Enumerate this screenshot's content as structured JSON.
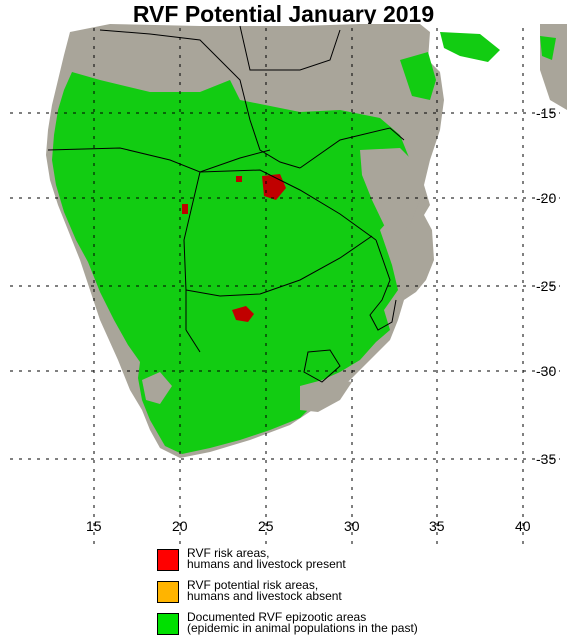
{
  "title": "RVF Potential January 2019",
  "latitude_labels": [
    "-15",
    "-20",
    "-25",
    "-30",
    "-35"
  ],
  "longitude_labels": [
    "15",
    "20",
    "25",
    "30",
    "35",
    "40"
  ],
  "colors": {
    "land": "#a9a59a",
    "epizootic": "#10d010",
    "risk_present": "#cc0000",
    "risk_absent": "#ffb400",
    "ocean": "#ffffff"
  },
  "legend": [
    {
      "line1": "RVF risk areas,",
      "line2": "humans and livestock present",
      "color": "#ff0000"
    },
    {
      "line1": "RVF potential risk areas,",
      "line2": "humans and livestock absent",
      "color": "#ffb400"
    },
    {
      "line1": "Documented RVF epizootic areas",
      "line2": "(epidemic in animal populations in the past)",
      "color": "#00e000"
    }
  ]
}
